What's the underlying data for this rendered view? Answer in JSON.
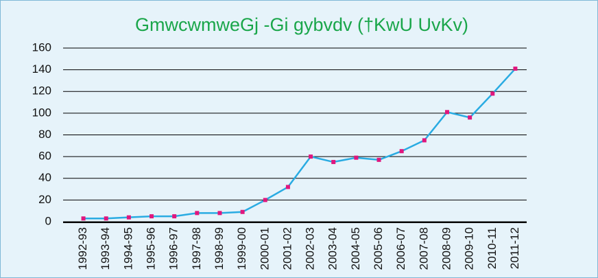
{
  "chart_data": {
    "type": "line",
    "title": "GmwcwmweGj -Gi gybvdv (†KwU UvKv)",
    "categories": [
      "1992-93",
      "1993-94",
      "1994-95",
      "1995-96",
      "1996-97",
      "1997-98",
      "1998-99",
      "1999-00",
      "2000-01",
      "2001-02",
      "2002-03",
      "2003-04",
      "2004-05",
      "2005-06",
      "2006-07",
      "2007-08",
      "2008-09",
      "2009-10",
      "2010-11",
      "2011-12"
    ],
    "values": [
      3,
      3,
      4,
      5,
      5,
      8,
      8,
      9,
      20,
      32,
      60,
      55,
      59,
      57,
      65,
      75,
      101,
      96,
      118,
      141
    ],
    "color": "#29abe2",
    "marker_color": "#e0177e",
    "ylim": [
      0,
      160
    ],
    "yticks": [
      0,
      20,
      40,
      60,
      80,
      100,
      120,
      140,
      160
    ],
    "grid": true
  }
}
